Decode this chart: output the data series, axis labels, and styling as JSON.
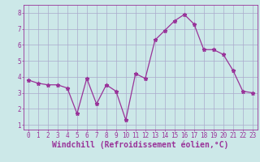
{
  "x": [
    0,
    1,
    2,
    3,
    4,
    5,
    6,
    7,
    8,
    9,
    10,
    11,
    12,
    13,
    14,
    15,
    16,
    17,
    18,
    19,
    20,
    21,
    22,
    23
  ],
  "y": [
    3.8,
    3.6,
    3.5,
    3.5,
    3.3,
    1.7,
    3.9,
    2.3,
    3.5,
    3.1,
    1.3,
    4.2,
    3.9,
    6.3,
    6.9,
    7.5,
    7.9,
    7.3,
    5.7,
    5.7,
    5.4,
    4.4,
    3.1,
    3.0
  ],
  "line_color": "#993399",
  "marker": "*",
  "marker_size": 3.5,
  "bg_color": "#cce8e8",
  "grid_color": "#aaaacc",
  "xlabel": "Windchill (Refroidissement éolien,°C)",
  "xlabel_color": "#993399",
  "xlim_min": -0.5,
  "xlim_max": 23.5,
  "ylim_min": 0.7,
  "ylim_max": 8.5,
  "xticks": [
    0,
    1,
    2,
    3,
    4,
    5,
    6,
    7,
    8,
    9,
    10,
    11,
    12,
    13,
    14,
    15,
    16,
    17,
    18,
    19,
    20,
    21,
    22,
    23
  ],
  "yticks": [
    1,
    2,
    3,
    4,
    5,
    6,
    7,
    8
  ],
  "tick_color": "#993399",
  "tick_fontsize": 5.5,
  "xlabel_fontsize": 7.0,
  "spine_color": "#993399",
  "bottom_bg": "#9933aa"
}
